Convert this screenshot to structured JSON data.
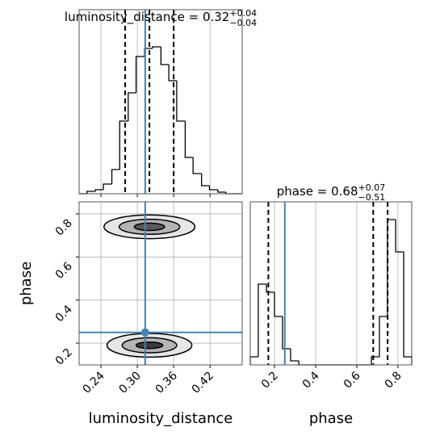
{
  "chart_data": {
    "type": "corner",
    "grid": true,
    "truth_color": "#4682b4",
    "line_color": "#000000",
    "parameters": [
      {
        "label": "luminosity_distance",
        "title": "luminosity_distance = 0.32",
        "title_sup": "+0.04",
        "title_sub": "−0.04",
        "lim": [
          0.204,
          0.473
        ],
        "ticks": [
          0.24,
          {
            "value": 0.3,
            "label": "0.30"
          },
          0.36,
          0.42
        ],
        "bins": [
          0.204,
          0.217,
          0.231,
          0.244,
          0.258,
          0.271,
          0.285,
          0.298,
          0.312,
          0.325,
          0.339,
          0.352,
          0.365,
          0.379,
          0.392,
          0.406,
          0.419,
          0.433,
          0.446,
          0.46,
          0.473
        ],
        "counts": [
          0,
          3,
          5,
          12,
          30,
          90,
          125,
          170,
          180,
          182,
          160,
          140,
          90,
          45,
          25,
          10,
          5,
          2,
          0,
          0
        ],
        "count_lim": [
          0,
          228
        ],
        "quantiles": [
          0.28,
          0.32,
          0.36
        ],
        "truth": 0.313
      },
      {
        "label": "phase",
        "title": "phase = 0.68",
        "title_sup": "+0.07",
        "title_sub": "−0.51",
        "lim": [
          0.082,
          0.867
        ],
        "lim_as_y": [
          0.099,
          0.856
        ],
        "ticks": [
          0.2,
          0.4,
          0.6,
          0.8
        ],
        "bins": [
          0.082,
          0.121,
          0.161,
          0.2,
          0.239,
          0.278,
          0.318,
          0.357,
          0.396,
          0.435,
          0.475,
          0.514,
          0.553,
          0.592,
          0.632,
          0.671,
          0.71,
          0.749,
          0.789,
          0.828,
          0.867
        ],
        "counts": [
          10,
          100,
          90,
          60,
          20,
          5,
          0,
          0,
          0,
          0,
          0,
          0,
          0,
          0,
          0,
          10,
          60,
          180,
          140,
          10
        ],
        "count_lim": [
          0,
          202
        ],
        "quantiles": [
          0.17,
          0.68,
          0.75
        ],
        "truth": 0.25
      }
    ],
    "contours": [
      {
        "x": 0.32,
        "y": 0.74,
        "levels": [
          [
            0.075,
            0.055,
            "#e6e6e6"
          ],
          [
            0.05,
            0.035,
            "#b4b4b4"
          ],
          [
            0.025,
            0.017,
            "#5a5a5a"
          ]
        ]
      },
      {
        "x": 0.32,
        "y": 0.19,
        "levels": [
          [
            0.07,
            0.055,
            "#e6e6e6"
          ],
          [
            0.045,
            0.035,
            "#b4b4b4"
          ],
          [
            0.022,
            0.015,
            "#3c3c3c"
          ]
        ]
      }
    ]
  }
}
